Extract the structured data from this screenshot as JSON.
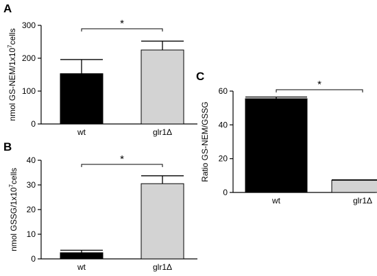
{
  "chart_data": [
    {
      "type": "bar",
      "panel": "A",
      "ylabel": "nmol GS-NEM/1x10",
      "ylabel_sup": "7",
      "ylabel_suffix": "cells",
      "categories": [
        "wt",
        "glr1Δ"
      ],
      "values": [
        153,
        225
      ],
      "errors": [
        43,
        27
      ],
      "ylim": [
        0,
        300
      ],
      "yticks": [
        0,
        100,
        200,
        300
      ],
      "bar_colors": [
        "#000000",
        "#d3d3d3"
      ],
      "significance": "*",
      "grid": false
    },
    {
      "type": "bar",
      "panel": "B",
      "ylabel": "nmol GSSG/1x10",
      "ylabel_sup": "7",
      "ylabel_suffix": "cells",
      "categories": [
        "wt",
        "glr1Δ"
      ],
      "values": [
        2.5,
        30.5
      ],
      "errors": [
        1,
        3.2
      ],
      "ylim": [
        0,
        40
      ],
      "yticks": [
        0,
        10,
        20,
        30,
        40
      ],
      "bar_colors": [
        "#000000",
        "#d3d3d3"
      ],
      "significance": "*",
      "grid": false
    },
    {
      "type": "bar",
      "panel": "C",
      "ylabel": "Ratio GS-NEM/GSSG",
      "ylabel_sup": "",
      "ylabel_suffix": "",
      "categories": [
        "wt",
        "glr1Δ"
      ],
      "values": [
        55.5,
        7.2
      ],
      "errors": [
        1,
        0.3
      ],
      "ylim": [
        0,
        60
      ],
      "yticks": [
        0,
        20,
        40,
        60
      ],
      "bar_colors": [
        "#000000",
        "#d3d3d3"
      ],
      "significance": "*",
      "grid": false
    }
  ]
}
